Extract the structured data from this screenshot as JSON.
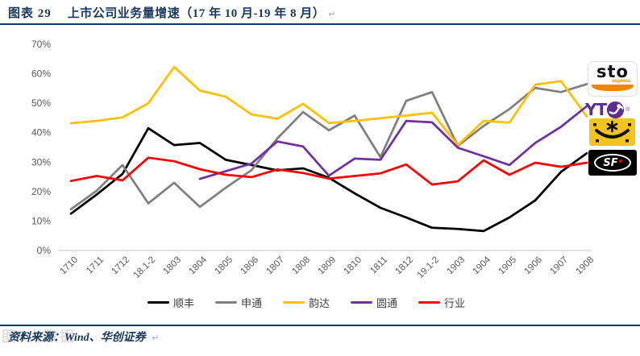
{
  "header": {
    "figure_label": "图表  29",
    "title": "上市公司业务量增速（17 年 10 月-19 年 8 月）",
    "paragraph_mark": "↵"
  },
  "chart_data": {
    "type": "line",
    "title": "上市公司业务量增速（17年10月-19年8月）",
    "categories": [
      "1710",
      "1711",
      "1712",
      "18.1-2",
      "1803",
      "1804",
      "1805",
      "1806",
      "1807",
      "1808",
      "1809",
      "1810",
      "1811",
      "1812",
      "19.1-2",
      "1903",
      "1904",
      "1905",
      "1906",
      "1907",
      "1908"
    ],
    "y_ticks": [
      "0%",
      "10%",
      "20%",
      "30%",
      "40%",
      "50%",
      "60%",
      "70%"
    ],
    "ylim": [
      0,
      70
    ],
    "grid": false,
    "legend_position": "bottom",
    "series": [
      {
        "name": "顺丰",
        "color": "#000000",
        "values": [
          12.5,
          19,
          26,
          41.5,
          35.8,
          36.5,
          30.8,
          29,
          27.2,
          27.9,
          24.7,
          19.4,
          14.5,
          11.2,
          7.7,
          7.3,
          6.6,
          11.2,
          17,
          26.7,
          33
        ]
      },
      {
        "name": "申通",
        "color": "#808080",
        "values": [
          14,
          20.3,
          29,
          16,
          23,
          14.8,
          21.3,
          27.3,
          38,
          47,
          40.8,
          45.8,
          31.7,
          50.8,
          53.8,
          35.5,
          42.3,
          48,
          55.2,
          53.8,
          56.5
        ]
      },
      {
        "name": "韵达",
        "color": "#FFC000",
        "values": [
          43.2,
          44,
          45.2,
          50,
          62.3,
          54.3,
          52.2,
          46.2,
          44.7,
          49.8,
          43.3,
          44,
          44.9,
          45.8,
          46.8,
          35.8,
          44,
          43.4,
          56.3,
          57.5,
          45.5
        ]
      },
      {
        "name": "圆通",
        "color": "#7030A0",
        "values": [
          null,
          null,
          null,
          null,
          null,
          24.3,
          26.9,
          29.5,
          37,
          35.3,
          25.4,
          31.2,
          30.8,
          44,
          43.5,
          34.9,
          32,
          29,
          36.5,
          42,
          49
        ]
      },
      {
        "name": "行业",
        "color": "#FF0000",
        "values": [
          23.6,
          25.3,
          23.8,
          31.5,
          30.3,
          27.6,
          25.7,
          24.9,
          27.5,
          26.3,
          24.4,
          25.3,
          26.2,
          29.2,
          22.4,
          23.5,
          30.6,
          25.7,
          29.8,
          28.4,
          29.8
        ]
      }
    ]
  },
  "logos": {
    "sto": {
      "text": "sto",
      "subtext": "express",
      "accent": "#F08300"
    },
    "yto": {
      "text": "YT",
      "reg_mark": "®",
      "color": "#5F2C8F"
    },
    "yunda": {
      "color": "#F2C41D"
    },
    "sf": {
      "text": "SF",
      "bg": "#000000",
      "dot": "#E60012"
    }
  },
  "footer": {
    "source": "资料来源：Wind、华创证券",
    "paragraph_mark": "↵",
    "watermark": "图9大数据"
  },
  "colors": {
    "title": "#17375E",
    "rule": "#17375E",
    "axis_text": "#595959",
    "axis_line": "#D9D9D9",
    "legend_text": "#404040"
  }
}
